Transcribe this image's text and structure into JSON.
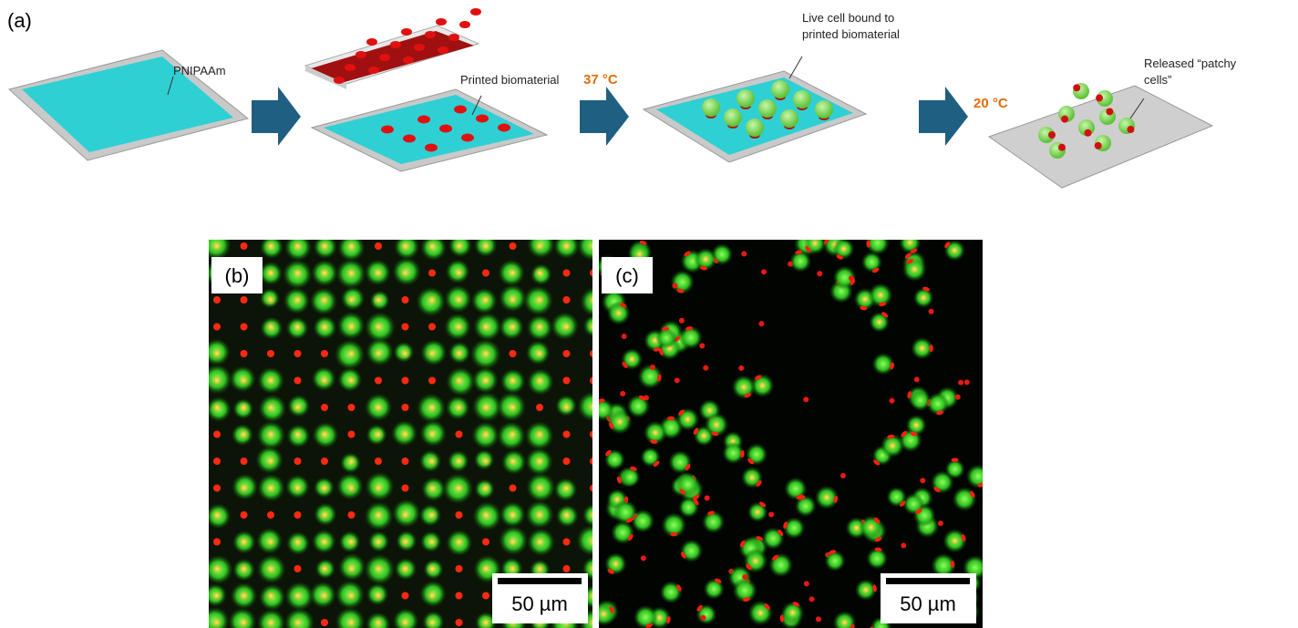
{
  "panel_a": {
    "label": "(a)",
    "steps": [
      {
        "label": "PNIPAAm"
      },
      {
        "label": "Printed biomaterial"
      },
      {
        "temperature": "37 °C",
        "label_lines": [
          "Live cell bound to",
          "printed biomaterial"
        ]
      },
      {
        "temperature": "20 °C",
        "label_lines": [
          "Released “patchy",
          "cells”"
        ]
      }
    ]
  },
  "panel_b": {
    "label": "(b)",
    "scale_bar": "50 µm"
  },
  "panel_c": {
    "label": "(c)",
    "scale_bar": "50 µm"
  }
}
